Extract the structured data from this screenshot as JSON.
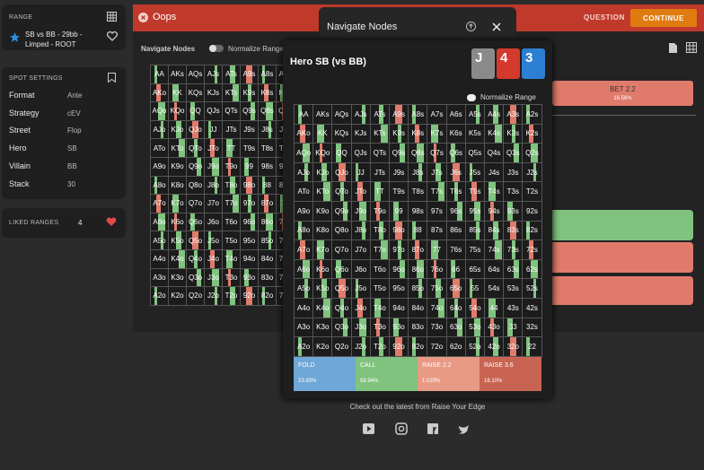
{
  "sidebar": {
    "range": {
      "heading": "RANGE",
      "name": "SB vs BB - 29bb - Limped - ROOT"
    },
    "spot_settings": {
      "heading": "SPOT SETTINGS",
      "rows": [
        [
          "Format",
          "Ante"
        ],
        [
          "Strategy",
          "cEV"
        ],
        [
          "Street",
          "Flop"
        ],
        [
          "Hero",
          "SB"
        ],
        [
          "Villain",
          "BB"
        ],
        [
          "Stack",
          "30"
        ]
      ]
    },
    "liked_ranges": {
      "heading": "LIKED RANGES",
      "count": 4
    }
  },
  "topbar": {
    "title": "Oops",
    "question": "QUESTION",
    "continue": "CONTINUE"
  },
  "main": {
    "navigate": "Navigate Nodes",
    "normalize": "Normalize Range",
    "bet": {
      "label": "BET 2.2",
      "pct": "16.56%"
    }
  },
  "hand_grid": [
    [
      "AA",
      "AKs",
      "AQs",
      "AJs",
      "ATs",
      "A9s",
      "A8s",
      "A7s",
      "A6s",
      "A5s",
      "A4s",
      "A3s",
      "A2s"
    ],
    [
      "AKo",
      "KK",
      "KQs",
      "KJs",
      "KTs",
      "K9s",
      "K8s",
      "K7s",
      "K6s",
      "K5s",
      "K4s",
      "K3s",
      "K2s"
    ],
    [
      "AQo",
      "KQo",
      "QQ",
      "QJs",
      "QTs",
      "Q9s",
      "Q8s",
      "Q7s",
      "Q6s",
      "Q5s",
      "Q4s",
      "Q3s",
      "Q2s"
    ],
    [
      "AJo",
      "KJo",
      "QJo",
      "JJ",
      "JTs",
      "J9s",
      "J8s",
      "J7s",
      "J6s",
      "J5s",
      "J4s",
      "J3s",
      "J2s"
    ],
    [
      "ATo",
      "KTo",
      "QTo",
      "JTo",
      "TT",
      "T9s",
      "T8s",
      "T7s",
      "T6s",
      "T5s",
      "T4s",
      "T3s",
      "T2s"
    ],
    [
      "A9o",
      "K9o",
      "Q9o",
      "J9o",
      "T9o",
      "99",
      "98s",
      "97s",
      "96s",
      "95s",
      "94s",
      "93s",
      "92s"
    ],
    [
      "A8o",
      "K8o",
      "Q8o",
      "J8o",
      "T8o",
      "98o",
      "88",
      "87s",
      "86s",
      "85s",
      "84s",
      "83s",
      "82s"
    ],
    [
      "A7o",
      "K7o",
      "Q7o",
      "J7o",
      "T7o",
      "97o",
      "87o",
      "77",
      "76s",
      "75s",
      "74s",
      "73s",
      "72s"
    ],
    [
      "A6o",
      "K6o",
      "Q6o",
      "J6o",
      "T6o",
      "96o",
      "86o",
      "76o",
      "66",
      "65s",
      "64s",
      "63s",
      "62s"
    ],
    [
      "A5o",
      "K5o",
      "Q5o",
      "J5o",
      "T5o",
      "95o",
      "85o",
      "75o",
      "65o",
      "55",
      "54s",
      "53s",
      "52s"
    ],
    [
      "A4o",
      "K4o",
      "Q4o",
      "J4o",
      "T4o",
      "94o",
      "84o",
      "74o",
      "64o",
      "54o",
      "44",
      "43s",
      "42s"
    ],
    [
      "A3o",
      "K3o",
      "Q3o",
      "J3o",
      "T3o",
      "93o",
      "83o",
      "73o",
      "63o",
      "53o",
      "43o",
      "33",
      "32s"
    ],
    [
      "A2o",
      "K2o",
      "Q2o",
      "J2o",
      "T2o",
      "92o",
      "82o",
      "72o",
      "62o",
      "52o",
      "42o",
      "32o",
      "22"
    ]
  ],
  "modal": {
    "title": "Navigate Nodes",
    "hero": "Hero SB (vs BB)",
    "cards": [
      "J",
      "4",
      "3"
    ],
    "normalize": "Normalize Range",
    "actions": [
      {
        "name": "FOLD",
        "pct": "23.93%"
      },
      {
        "name": "CALL",
        "pct": "58.94%"
      },
      {
        "name": "RAISE 2.2",
        "pct": "1.029%"
      },
      {
        "name": "RAISE 3.6",
        "pct": "16.10%"
      }
    ]
  },
  "footer": {
    "text": "Check out the latest from Raise Your Edge"
  }
}
